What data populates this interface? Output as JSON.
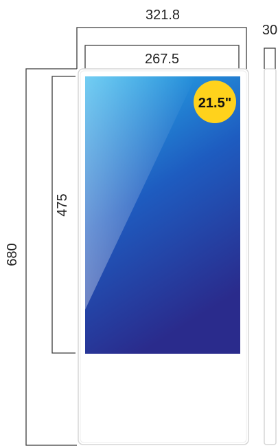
{
  "dimensions": {
    "outer_width": "321.8",
    "screen_width": "267.5",
    "depth": "30",
    "total_height": "680",
    "screen_height": "475"
  },
  "badge": {
    "label": "21.5\"",
    "color": "#ffd21c"
  },
  "colors": {
    "line": "#3a3a3a",
    "housing": "#ffffff",
    "housing_border": "#d6d6d6",
    "screen_top": "#27b3ec",
    "screen_mid": "#1e5cc0",
    "screen_bottom": "#2a2b8c"
  }
}
